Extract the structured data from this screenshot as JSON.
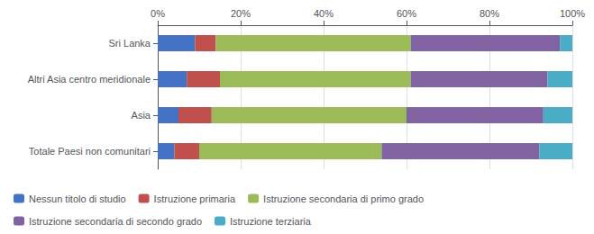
{
  "chart_data": {
    "type": "bar",
    "orientation": "horizontal",
    "stacked": true,
    "categories": [
      "Sri Lanka",
      "Altri Asia centro meridionale",
      "Asia",
      "Totale Paesi non comunitari"
    ],
    "series": [
      {
        "name": "Nessun titolo di studio",
        "color": "#4472c4",
        "values": [
          9,
          7,
          5,
          4
        ]
      },
      {
        "name": "Istruzione primaria",
        "color": "#c0504d",
        "values": [
          5,
          8,
          8,
          6
        ]
      },
      {
        "name": "Istruzione secondaria di primo grado",
        "color": "#9bbb59",
        "values": [
          47,
          46,
          47,
          44
        ]
      },
      {
        "name": "Istruzione secondaria di secondo grado",
        "color": "#8064a2",
        "values": [
          36,
          33,
          33,
          38
        ]
      },
      {
        "name": "Istruzione terziaria",
        "color": "#4bacc6",
        "values": [
          3,
          6,
          7,
          8
        ]
      }
    ],
    "xlim": [
      0,
      100
    ],
    "xticks": [
      {
        "value": 0,
        "label": "0%"
      },
      {
        "value": 20,
        "label": "20%"
      },
      {
        "value": 40,
        "label": "40%"
      },
      {
        "value": 60,
        "label": "60%"
      },
      {
        "value": 80,
        "label": "80%"
      },
      {
        "value": 100,
        "label": "100%"
      }
    ],
    "grid": true,
    "legend": "bottom"
  }
}
